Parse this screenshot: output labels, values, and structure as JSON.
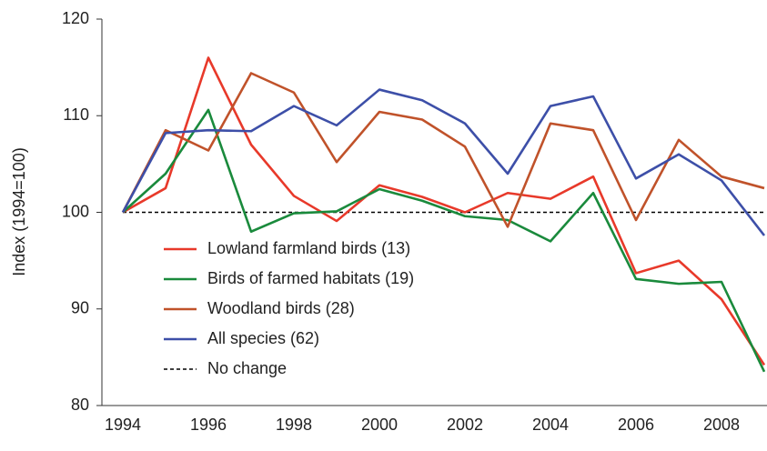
{
  "chart_data": {
    "type": "line",
    "y_label": "Index (1994=100)",
    "categories": [
      "1994",
      null,
      "1996",
      null,
      "1998",
      null,
      "2000",
      null,
      "2002",
      null,
      "2004",
      null,
      "2006",
      null,
      "2008",
      null
    ],
    "ylim": [
      80,
      120
    ],
    "yticks": [
      80,
      90,
      100,
      110,
      120
    ],
    "legend": "lower-left",
    "series": [
      {
        "name": "Lowland farmland birds (13)",
        "color": "#e8392a",
        "values": [
          100,
          102.5,
          116,
          107,
          101.7,
          99.1,
          102.8,
          101.6,
          100,
          102,
          101.4,
          103.7,
          93.7,
          95,
          91,
          84.2
        ]
      },
      {
        "name": "Birds of farmed habitats (19)",
        "color": "#1a8a3c",
        "values": [
          100,
          104,
          110.6,
          98,
          99.9,
          100.1,
          102.4,
          101.2,
          99.6,
          99.2,
          97,
          102,
          93.1,
          92.6,
          92.8,
          83.5
        ]
      },
      {
        "name": "Woodland birds (28)",
        "color": "#c0522a",
        "values": [
          100,
          108.5,
          106.4,
          114.4,
          112.4,
          105.2,
          110.4,
          109.6,
          106.8,
          98.5,
          109.2,
          108.5,
          99.2,
          107.5,
          103.7,
          102.5
        ]
      },
      {
        "name": "All species (62)",
        "color": "#3d4fa8",
        "values": [
          100,
          108.2,
          108.5,
          108.4,
          111,
          109,
          112.7,
          111.6,
          109.2,
          104,
          111,
          112,
          103.5,
          106,
          103.3,
          97.6
        ]
      },
      {
        "name": "No change",
        "color": "#000000",
        "style": "dashed",
        "values": [
          100,
          100,
          100,
          100,
          100,
          100,
          100,
          100,
          100,
          100,
          100,
          100,
          100,
          100,
          100,
          100
        ]
      }
    ]
  }
}
